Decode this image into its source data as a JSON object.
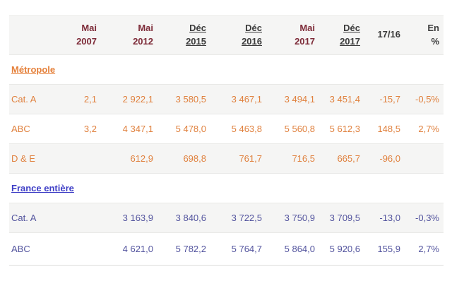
{
  "chart_data": {
    "type": "table",
    "columns": [
      {
        "line1": "Mai",
        "line2": "2007"
      },
      {
        "line1": "Mai",
        "line2": "2012"
      },
      {
        "line1": "Déc",
        "line2": "2015"
      },
      {
        "line1": "Déc",
        "line2": "2016"
      },
      {
        "line1": "Mai",
        "line2": "2017"
      },
      {
        "line1": "Déc",
        "line2": "2017"
      },
      {
        "line1": "17/16",
        "line2": ""
      },
      {
        "line1": "En",
        "line2": "%"
      }
    ],
    "sections": [
      {
        "title": "Métropole",
        "theme": "orange",
        "rows": [
          {
            "label": "Cat. A",
            "values": [
              "2,1",
              "2 922,1",
              "3 580,5",
              "3 467,1",
              "3 494,1",
              "3 451,4",
              "-15,7",
              "-0,5%"
            ]
          },
          {
            "label": "ABC",
            "values": [
              "3,2",
              "4 347,1",
              "5 478,0",
              "5 463,8",
              "5 560,8",
              "5 612,3",
              "148,5",
              "2,7%"
            ]
          },
          {
            "label": "D & E",
            "values": [
              "",
              "612,9",
              "698,8",
              "761,7",
              "716,5",
              "665,7",
              "-96,0",
              ""
            ]
          }
        ]
      },
      {
        "title": "France entière",
        "theme": "blue",
        "rows": [
          {
            "label": "Cat. A",
            "values": [
              "",
              "3 163,9",
              "3 840,6",
              "3 722,5",
              "3 750,9",
              "3 709,5",
              "-13,0",
              "-0,3%"
            ]
          },
          {
            "label": "ABC",
            "values": [
              "",
              "4 621,0",
              "5 782,2",
              "5 764,7",
              "5 864,0",
              "5 920,6",
              "155,9",
              "2,7%"
            ]
          }
        ]
      }
    ]
  },
  "colors": {
    "maroon_header": "#7d2b38",
    "dark_header": "#3b3b3b",
    "orange_section": "#e0813e",
    "blue_section_values": "#53549e",
    "blue_section_link": "#3e3ec6",
    "row_stripe": "#f5f5f4"
  }
}
